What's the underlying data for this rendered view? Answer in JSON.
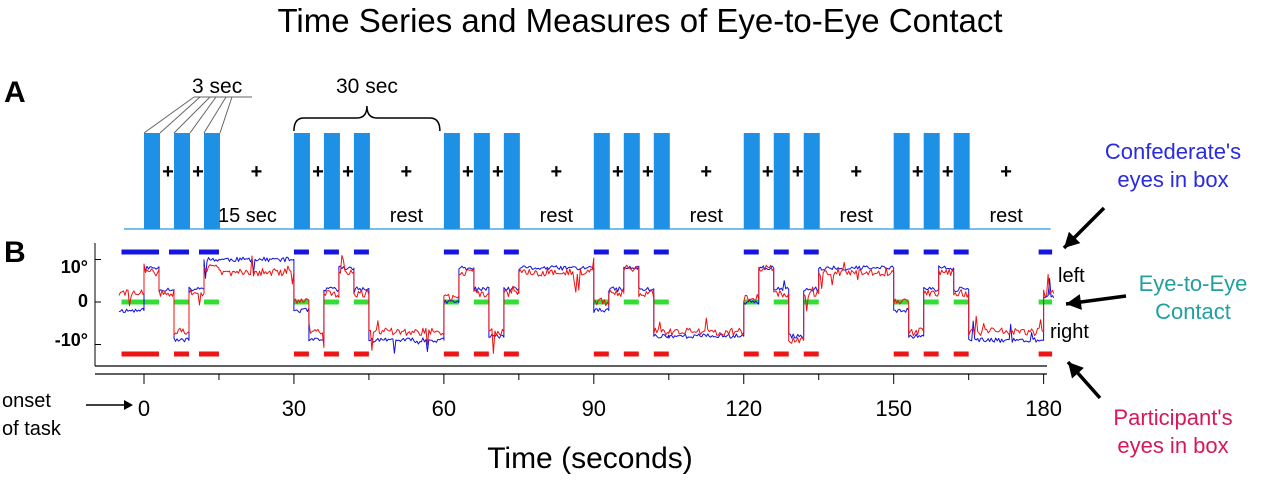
{
  "title": "Time Series and Measures of Eye-to-Eye Contact",
  "panels": {
    "a": "A",
    "b": "B"
  },
  "annotations": {
    "three_sec": "3 sec",
    "thirty_sec": "30 sec",
    "fifteen_sec": "15 sec",
    "rest": "rest",
    "plus": "+",
    "onset_line1": "onset",
    "onset_line2": "of task"
  },
  "legend": {
    "confederate": {
      "line1": "Confederate's",
      "line2": "eyes in box",
      "color": "#2a2ae0"
    },
    "contact": {
      "line1": "Eye-to-Eye",
      "line2": "Contact",
      "color": "#21a0a0"
    },
    "participant": {
      "line1": "Participant's",
      "line2": "eyes in box",
      "color": "#d8175b"
    }
  },
  "direction": {
    "left": "left",
    "right": "right"
  },
  "colors": {
    "block": "#1e90e6",
    "baseline": "#4aa8ea",
    "confederate_trace": "#1010e0",
    "participant_trace": "#ee1111",
    "contact_marks": "#33dd33",
    "confederate_marks": "#1515e0",
    "participant_marks": "#ee1515"
  },
  "chart_data": {
    "type": "line",
    "xlabel": "Time (seconds)",
    "ylabel": "",
    "xlim": [
      -5,
      182
    ],
    "ylim": [
      -17,
      17
    ],
    "x_ticks": [
      0,
      30,
      60,
      90,
      120,
      150,
      180
    ],
    "y_ticks": [
      {
        "value": 10,
        "label": "10°"
      },
      {
        "value": 0,
        "label": "0"
      },
      {
        "value": -10,
        "label": "-10°"
      }
    ],
    "task_blocks": [
      {
        "cycle_start": 0,
        "faces": [
          0,
          6,
          12
        ],
        "face_duration": 3,
        "rest_start": 15
      },
      {
        "cycle_start": 30,
        "faces": [
          30,
          36,
          42
        ],
        "face_duration": 3,
        "rest_start": 45
      },
      {
        "cycle_start": 60,
        "faces": [
          60,
          66,
          72
        ],
        "face_duration": 3,
        "rest_start": 75
      },
      {
        "cycle_start": 90,
        "faces": [
          90,
          96,
          102
        ],
        "face_duration": 3,
        "rest_start": 105
      },
      {
        "cycle_start": 120,
        "faces": [
          120,
          126,
          132
        ],
        "face_duration": 3,
        "rest_start": 135
      },
      {
        "cycle_start": 150,
        "faces": [
          150,
          156,
          162
        ],
        "face_duration": 3,
        "rest_start": 165
      }
    ],
    "series": [
      {
        "id": "confederate",
        "segments": [
          [
            -5,
            0,
            -2
          ],
          [
            0,
            3,
            8
          ],
          [
            3,
            6,
            3
          ],
          [
            6,
            9,
            -9
          ],
          [
            9,
            12,
            3
          ],
          [
            12,
            15,
            10
          ],
          [
            15,
            30,
            10
          ],
          [
            30,
            33,
            -2
          ],
          [
            33,
            36,
            -9
          ],
          [
            36,
            39,
            3
          ],
          [
            39,
            42,
            8
          ],
          [
            42,
            45,
            3
          ],
          [
            45,
            60,
            -9
          ],
          [
            60,
            63,
            0
          ],
          [
            63,
            66,
            8
          ],
          [
            66,
            69,
            3
          ],
          [
            69,
            72,
            -8
          ],
          [
            72,
            75,
            3
          ],
          [
            75,
            90,
            8
          ],
          [
            90,
            93,
            -2
          ],
          [
            93,
            96,
            3
          ],
          [
            96,
            99,
            8
          ],
          [
            99,
            102,
            3
          ],
          [
            102,
            105,
            -8
          ],
          [
            105,
            120,
            -8
          ],
          [
            120,
            123,
            0
          ],
          [
            123,
            126,
            8
          ],
          [
            126,
            129,
            3
          ],
          [
            129,
            132,
            -8
          ],
          [
            132,
            135,
            3
          ],
          [
            135,
            150,
            8
          ],
          [
            150,
            153,
            -2
          ],
          [
            153,
            156,
            -8
          ],
          [
            156,
            159,
            3
          ],
          [
            159,
            162,
            8
          ],
          [
            162,
            165,
            3
          ],
          [
            165,
            180,
            -9
          ],
          [
            180,
            182,
            1
          ]
        ]
      },
      {
        "id": "participant",
        "segments": [
          [
            -5,
            0,
            2
          ],
          [
            0,
            3,
            7
          ],
          [
            3,
            6,
            2
          ],
          [
            6,
            9,
            -7
          ],
          [
            9,
            12,
            2
          ],
          [
            12,
            15,
            8
          ],
          [
            15,
            30,
            7
          ],
          [
            30,
            33,
            0
          ],
          [
            33,
            36,
            -7
          ],
          [
            36,
            39,
            2
          ],
          [
            39,
            42,
            7
          ],
          [
            42,
            45,
            2
          ],
          [
            45,
            60,
            -7
          ],
          [
            60,
            63,
            1
          ],
          [
            63,
            66,
            7
          ],
          [
            66,
            69,
            2
          ],
          [
            69,
            72,
            -7
          ],
          [
            72,
            75,
            2
          ],
          [
            75,
            90,
            7
          ],
          [
            90,
            93,
            0
          ],
          [
            93,
            96,
            2
          ],
          [
            96,
            99,
            8
          ],
          [
            99,
            102,
            2
          ],
          [
            102,
            105,
            -7
          ],
          [
            105,
            120,
            -7
          ],
          [
            120,
            123,
            1
          ],
          [
            123,
            126,
            8
          ],
          [
            126,
            129,
            2
          ],
          [
            129,
            132,
            -9
          ],
          [
            132,
            135,
            2
          ],
          [
            135,
            150,
            7
          ],
          [
            150,
            153,
            0
          ],
          [
            153,
            156,
            -7
          ],
          [
            156,
            159,
            2
          ],
          [
            159,
            162,
            7
          ],
          [
            162,
            165,
            2
          ],
          [
            165,
            180,
            -7
          ],
          [
            180,
            182,
            2
          ]
        ]
      }
    ],
    "markers": {
      "confederate_in_box": [
        [
          -5,
          3
        ],
        [
          5,
          9
        ],
        [
          11,
          15
        ],
        [
          30,
          33
        ],
        [
          36,
          39
        ],
        [
          42,
          45
        ],
        [
          60,
          63
        ],
        [
          66,
          69
        ],
        [
          72,
          75
        ],
        [
          90,
          93
        ],
        [
          96,
          99
        ],
        [
          102,
          105
        ],
        [
          120,
          123
        ],
        [
          126,
          129
        ],
        [
          132,
          135
        ],
        [
          150,
          153
        ],
        [
          156,
          159
        ],
        [
          162,
          165
        ],
        [
          179,
          182
        ]
      ],
      "participant_in_box": [
        [
          -5,
          3
        ],
        [
          6,
          9
        ],
        [
          11,
          15
        ],
        [
          30,
          33
        ],
        [
          36,
          39
        ],
        [
          42,
          45
        ],
        [
          60,
          63
        ],
        [
          66,
          69
        ],
        [
          72,
          75
        ],
        [
          90,
          93
        ],
        [
          96,
          99
        ],
        [
          102,
          105
        ],
        [
          120,
          123
        ],
        [
          126,
          129
        ],
        [
          132,
          135
        ],
        [
          150,
          153
        ],
        [
          156,
          159
        ],
        [
          162,
          165
        ],
        [
          179,
          182
        ]
      ],
      "eye_contact": [
        [
          -5,
          3
        ],
        [
          6,
          9
        ],
        [
          12,
          15
        ],
        [
          30,
          33
        ],
        [
          36,
          39
        ],
        [
          42,
          45
        ],
        [
          60,
          63
        ],
        [
          66,
          69
        ],
        [
          72,
          75
        ],
        [
          90,
          93
        ],
        [
          96,
          99
        ],
        [
          102,
          105
        ],
        [
          120,
          123
        ],
        [
          126,
          129
        ],
        [
          132,
          135
        ],
        [
          150,
          153
        ],
        [
          156,
          159
        ],
        [
          162,
          165
        ],
        [
          179,
          182
        ]
      ]
    }
  }
}
